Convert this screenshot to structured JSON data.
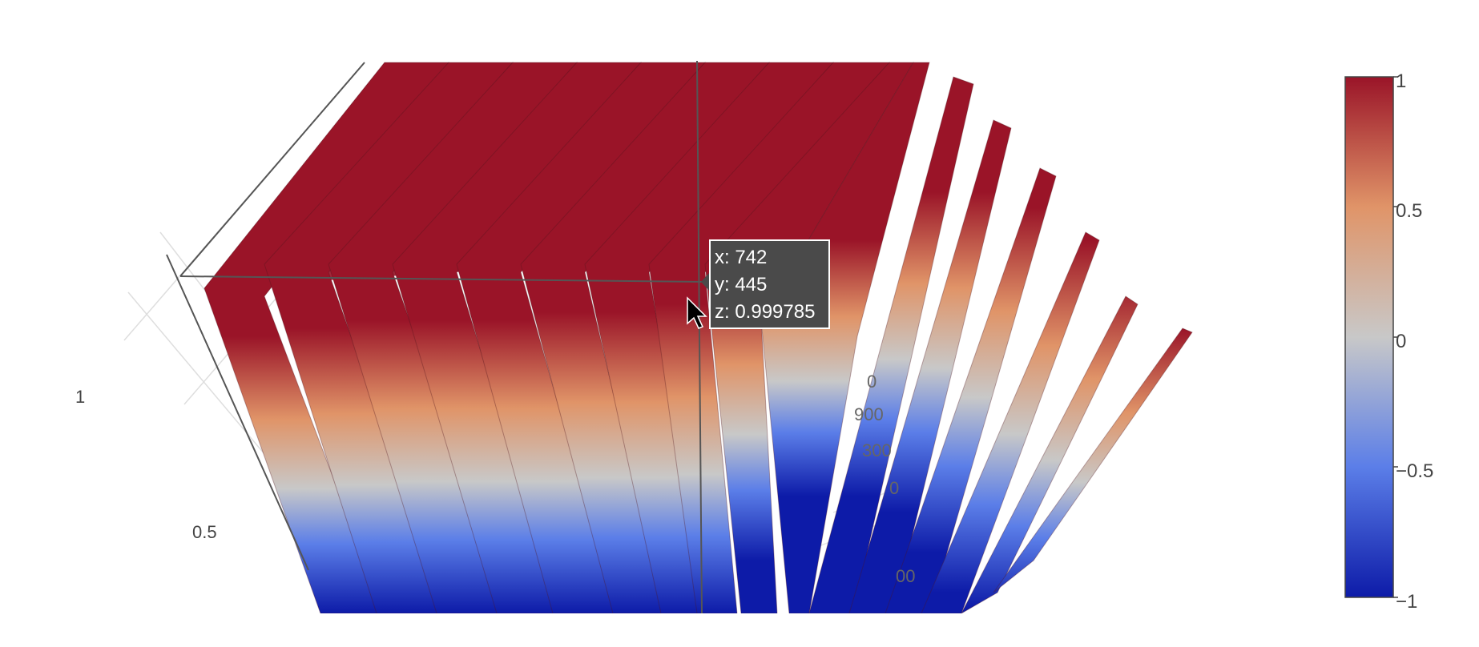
{
  "chart_data": {
    "type": "surface",
    "colorscale": [
      "#0d1ba8",
      "#5b7ee8",
      "#c8c8c8",
      "#e09468",
      "#9a1428"
    ],
    "cmin": -1,
    "cmax": 1,
    "z_ticks": [
      "0.5",
      "1"
    ],
    "partial_ticks": [
      "0",
      "900",
      "300",
      "0",
      "00"
    ],
    "colorbar": {
      "ticks": [
        {
          "value": 1,
          "label": "1"
        },
        {
          "value": 0.5,
          "label": "0.5"
        },
        {
          "value": 0,
          "label": "0"
        },
        {
          "value": -0.5,
          "label": "−0.5"
        },
        {
          "value": -1,
          "label": "−1"
        }
      ]
    },
    "hover": {
      "x": "x: 742",
      "y": "y: 445",
      "z": "z: 0.999785"
    }
  }
}
